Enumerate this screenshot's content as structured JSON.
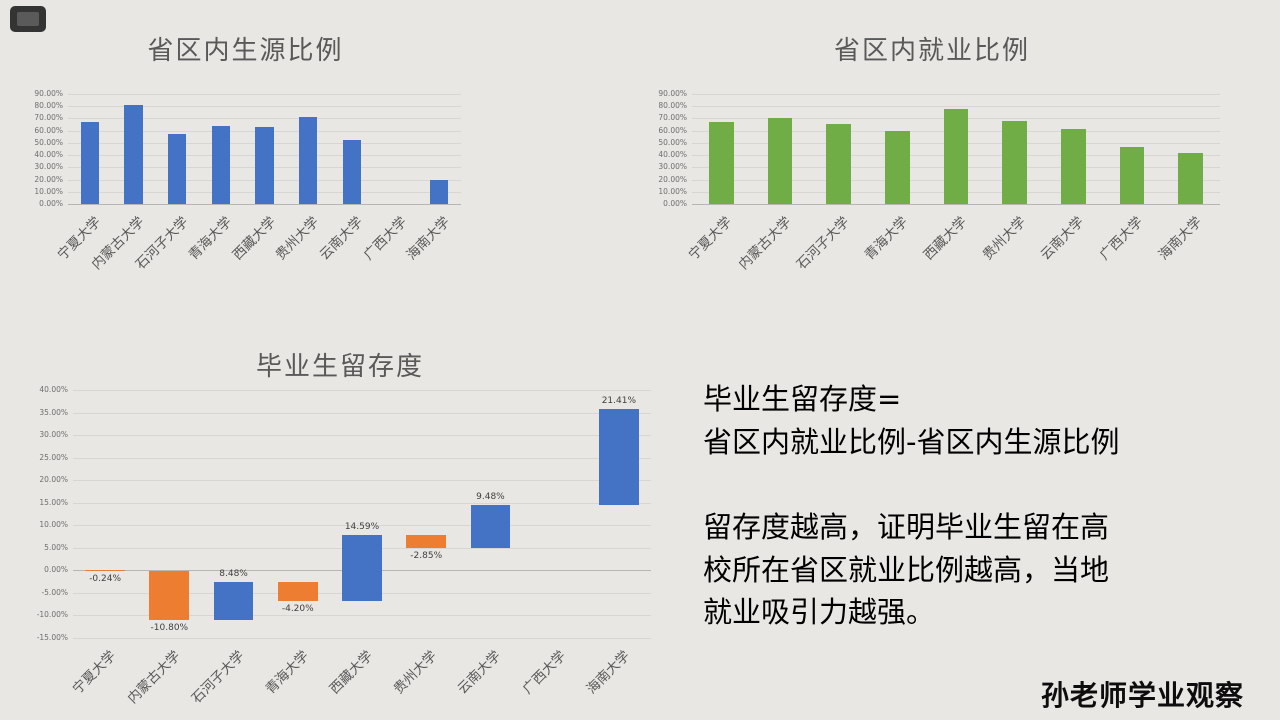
{
  "page": {
    "background": "#e8e7e4",
    "brand_watermark": "孙老师学业观察"
  },
  "colors": {
    "blue": "#4472c4",
    "green": "#70ad47",
    "orange": "#ed7d31",
    "title_gray": "#595959",
    "axis_gray": "#6e6e6e",
    "gridline": "#d7d6d3"
  },
  "chart_data": [
    {
      "type": "bar",
      "title": "省区内生源比例",
      "categories": [
        "宁夏大学",
        "内蒙古大学",
        "石河子大学",
        "青海大学",
        "西藏大学",
        "贵州大学",
        "云南大学",
        "广西大学",
        "海南大学"
      ],
      "values": [
        67,
        81,
        57,
        64,
        63,
        71,
        52,
        null,
        20
      ],
      "unit": "%",
      "ylim": [
        0,
        90
      ],
      "ytick_step": 10,
      "ytick_format": "0.00%",
      "bar_color": "#4472c4",
      "grid": true,
      "legend": "none"
    },
    {
      "type": "bar",
      "title": "省区内就业比例",
      "categories": [
        "宁夏大学",
        "内蒙古大学",
        "石河子大学",
        "青海大学",
        "西藏大学",
        "贵州大学",
        "云南大学",
        "广西大学",
        "海南大学"
      ],
      "values": [
        66.8,
        70.2,
        65.5,
        59.8,
        77.6,
        68.2,
        61.5,
        47,
        41.4
      ],
      "unit": "%",
      "ylim": [
        0,
        90
      ],
      "ytick_step": 10,
      "ytick_format": "0.00%",
      "bar_color": "#70ad47",
      "grid": true,
      "legend": "none"
    },
    {
      "type": "waterfall",
      "title": "毕业生留存度",
      "categories": [
        "宁夏大学",
        "内蒙古大学",
        "石河子大学",
        "青海大学",
        "西藏大学",
        "贵州大学",
        "云南大学",
        "广西大学",
        "海南大学"
      ],
      "values": [
        -0.24,
        -10.8,
        8.48,
        -4.2,
        14.59,
        -2.85,
        9.48,
        null,
        21.41
      ],
      "labels": [
        "-0.24%",
        "-10.80%",
        "8.48%",
        "-4.20%",
        "14.59%",
        "-2.85%",
        "9.48%",
        "",
        "21.41%"
      ],
      "unit": "%",
      "ylim": [
        -15,
        40
      ],
      "ytick_step": 5,
      "ytick_format": "0.00%",
      "increase_color": "#4472c4",
      "decrease_color": "#ed7d31",
      "grid": true,
      "legend": "none"
    }
  ],
  "annotation": {
    "lines": [
      "毕业生留存度=",
      "省区内就业比例-省区内生源比例",
      "",
      "留存度越高，证明毕业生留在高",
      "校所在省区就业比例越高，当地",
      "就业吸引力越强。"
    ]
  }
}
